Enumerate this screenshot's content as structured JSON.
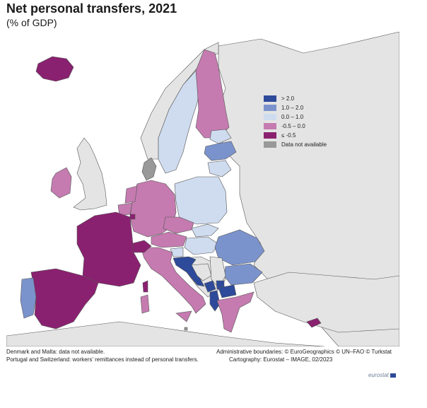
{
  "title": "Net personal transfers, 2021",
  "subtitle": "(% of GDP)",
  "legend": {
    "items": [
      {
        "label": "> 2.0",
        "color": "#2e4a9a"
      },
      {
        "label": "1.0 – 2.0",
        "color": "#7b93cc"
      },
      {
        "label": "0.0 – 1.0",
        "color": "#cfdcf0"
      },
      {
        "label": "-0.5 – 0.0",
        "color": "#c57bb0"
      },
      {
        "label": "≤ -0.5",
        "color": "#8a2170"
      },
      {
        "label": "Data not available",
        "color": "#999999"
      }
    ]
  },
  "colors": {
    "sea": "#ffffff",
    "non_eu_land": "#e4e4e4",
    "border": "#555555"
  },
  "notes": {
    "line1": "Denmark and Malta: data not available.",
    "line2": "Portugal and Switzerland: workers' remittances instead of personal transfers."
  },
  "credits": {
    "line1": "Administrative boundaries: © EuroGeographics © UN–FAO © Turkstat",
    "line2": "Cartography: Eurostat – IMAGE, 02/2023"
  },
  "brand": "eurostat"
}
